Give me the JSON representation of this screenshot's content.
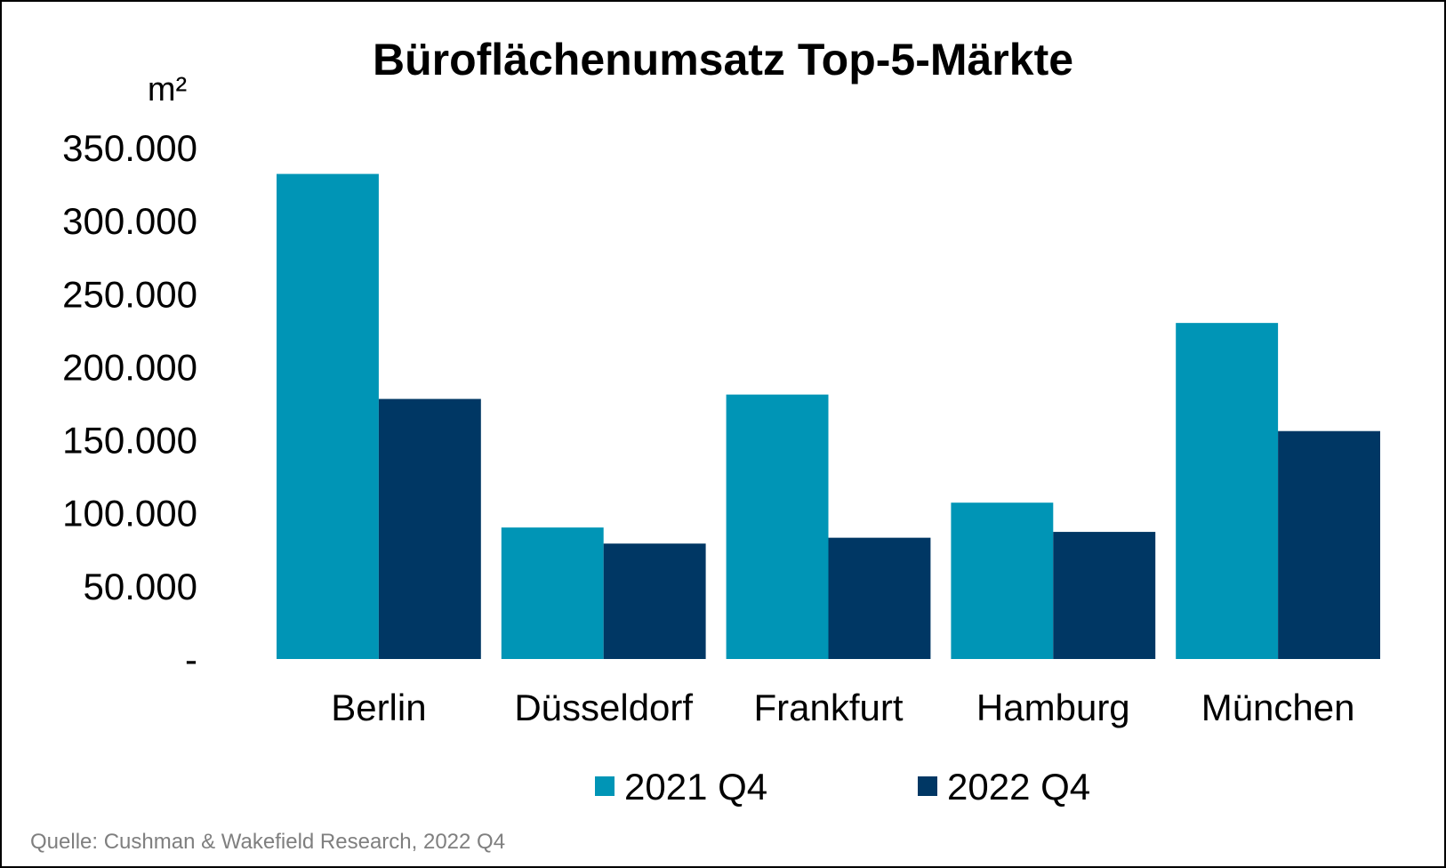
{
  "chart_data": {
    "type": "bar",
    "title": "Büroflächenumsatz Top-5-Märkte",
    "unit_label": "m²",
    "categories": [
      "Berlin",
      "Düsseldorf",
      "Frankfurt",
      "Hamburg",
      "München"
    ],
    "series": [
      {
        "name": "2021 Q4",
        "color": "#0095B6",
        "values": [
          332000,
          90000,
          181000,
          107000,
          230000
        ]
      },
      {
        "name": "2022 Q4",
        "color": "#003764",
        "values": [
          178000,
          79000,
          83000,
          87000,
          156000
        ]
      }
    ],
    "y_ticks": [
      "-",
      "50.000",
      "100.000",
      "150.000",
      "200.000",
      "250.000",
      "300.000",
      "350.000"
    ],
    "y_tick_values": [
      0,
      50000,
      100000,
      150000,
      200000,
      250000,
      300000,
      350000
    ],
    "ylim": [
      0,
      350000
    ],
    "grid": false,
    "legend_position": "bottom"
  },
  "source": "Quelle: Cushman & Wakefield Research, 2022 Q4"
}
